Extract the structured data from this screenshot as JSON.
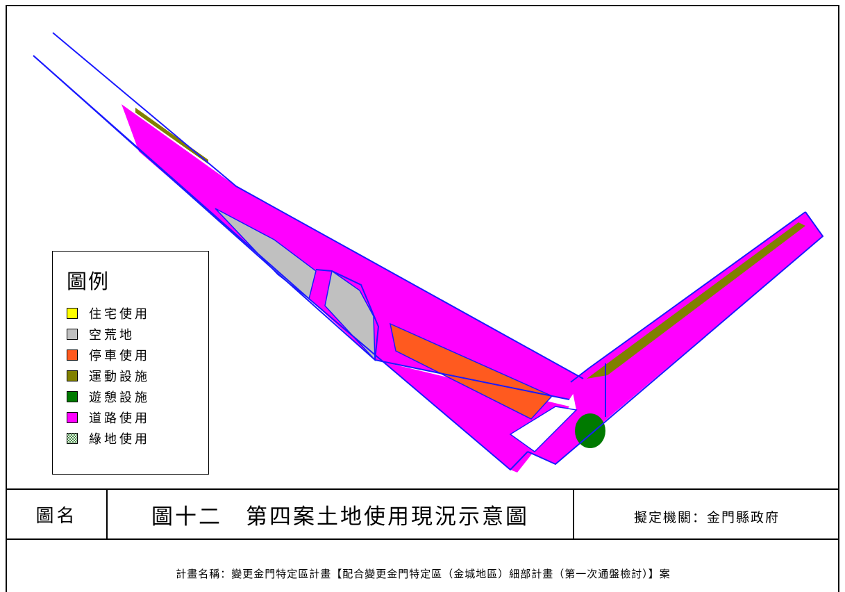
{
  "legend": {
    "title": "圖例",
    "items": [
      {
        "label": "住宅使用",
        "color": "#ffff00",
        "icon": "solid-swatch"
      },
      {
        "label": "空荒地",
        "color": "#c0c0c0",
        "icon": "solid-swatch"
      },
      {
        "label": "停車使用",
        "color": "#ff5a1f",
        "icon": "solid-swatch"
      },
      {
        "label": "運動設施",
        "color": "#808000",
        "icon": "solid-swatch"
      },
      {
        "label": "遊憩設施",
        "color": "#007a00",
        "icon": "solid-swatch"
      },
      {
        "label": "道路使用",
        "color": "#ff00ff",
        "icon": "solid-swatch"
      },
      {
        "label": "綠地使用",
        "color": "#1a6b1a",
        "icon": "dotted-pattern-swatch"
      }
    ]
  },
  "title_block": {
    "name_label": "圖名",
    "title": "圖十二　第四案土地使用現況示意圖",
    "agency": "擬定機關：金門縣政府"
  },
  "plan_name": "計畫名稱：變更金門特定區計畫【配合變更金門特定區（金城地區）細部計畫（第一次通盤檢討）】案",
  "colors": {
    "boundary": "#1a1aff",
    "road": "#ff00ff",
    "vacant": "#c0c0c0",
    "parking": "#ff5a1f",
    "sports": "#808000",
    "recreation": "#007a00"
  }
}
